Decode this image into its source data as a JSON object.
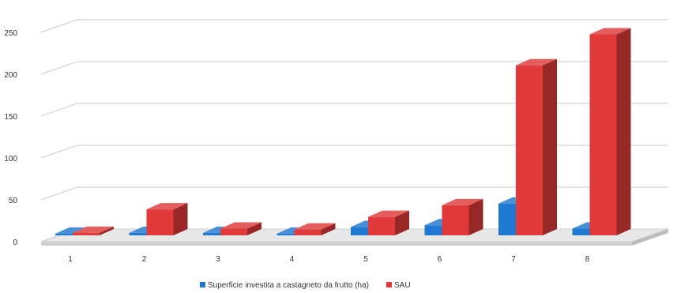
{
  "chart_data": {
    "type": "bar",
    "three_d": true,
    "categories": [
      "1",
      "2",
      "3",
      "4",
      "5",
      "6",
      "7",
      "8"
    ],
    "series": [
      {
        "name": "Superficie investita a castagneto da frutto (ha)",
        "color": "#1f78d1",
        "values": [
          2,
          3,
          3,
          2,
          10,
          12,
          38,
          8
        ]
      },
      {
        "name": "SAU",
        "color": "#e03a3a",
        "values": [
          3,
          31,
          8,
          7,
          22,
          36,
          203,
          240
        ]
      }
    ],
    "y_ticks": [
      "0",
      "50",
      "100",
      "150",
      "200",
      "250"
    ],
    "ylim": [
      0,
      265
    ],
    "grid": true,
    "legend": "bottom"
  }
}
